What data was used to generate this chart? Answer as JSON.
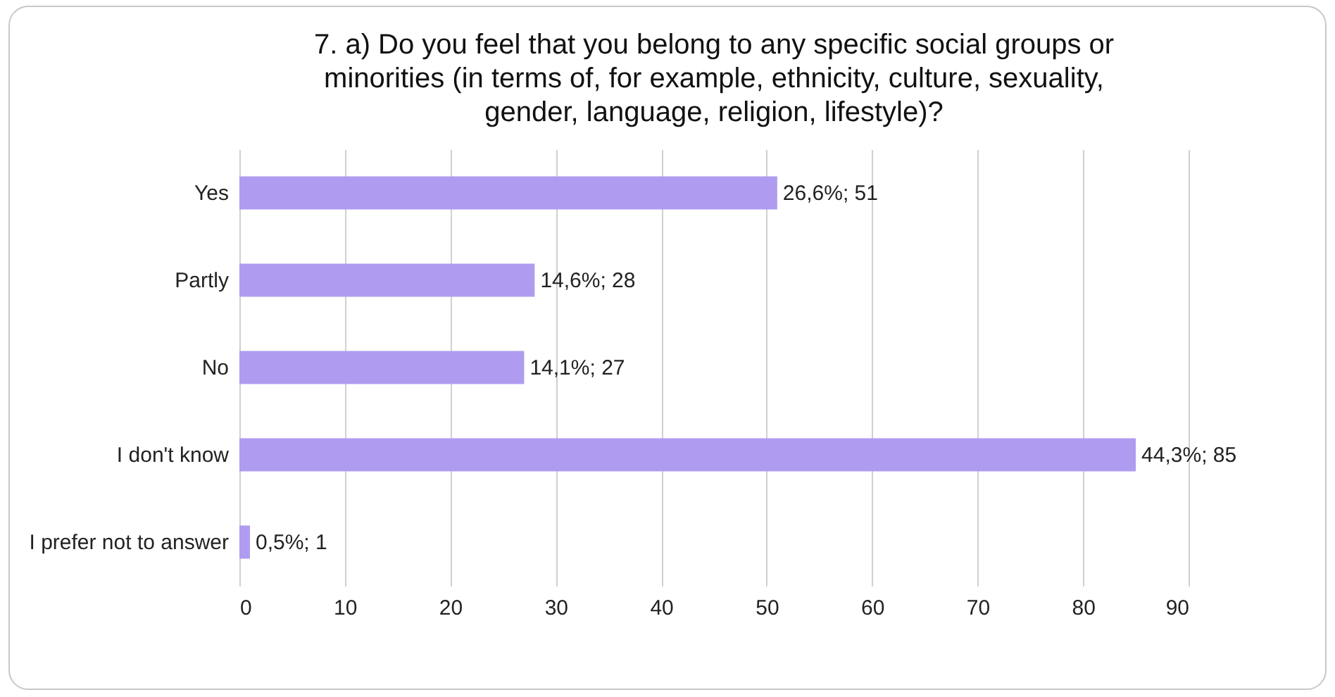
{
  "chart_data": {
    "type": "bar",
    "orientation": "horizontal",
    "title": "7. a) Do you feel that you belong to any specific social groups or minorities (in terms of, for example, ethnicity, culture, sexuality, gender, language, religion, lifestyle)?",
    "categories": [
      "Yes",
      "Partly",
      "No",
      "I don't know",
      "I prefer not to answer"
    ],
    "values": [
      51,
      28,
      27,
      85,
      1
    ],
    "value_labels": [
      "26,6%; 51",
      "14,6%; 28",
      "14,1%; 27",
      "44,3%; 85",
      "0,5%; 1"
    ],
    "color": "#af9cf0",
    "xlim": [
      0,
      90
    ],
    "xticks": [
      0,
      10,
      20,
      30,
      40,
      50,
      60,
      70,
      80,
      90
    ],
    "grid": "x"
  }
}
